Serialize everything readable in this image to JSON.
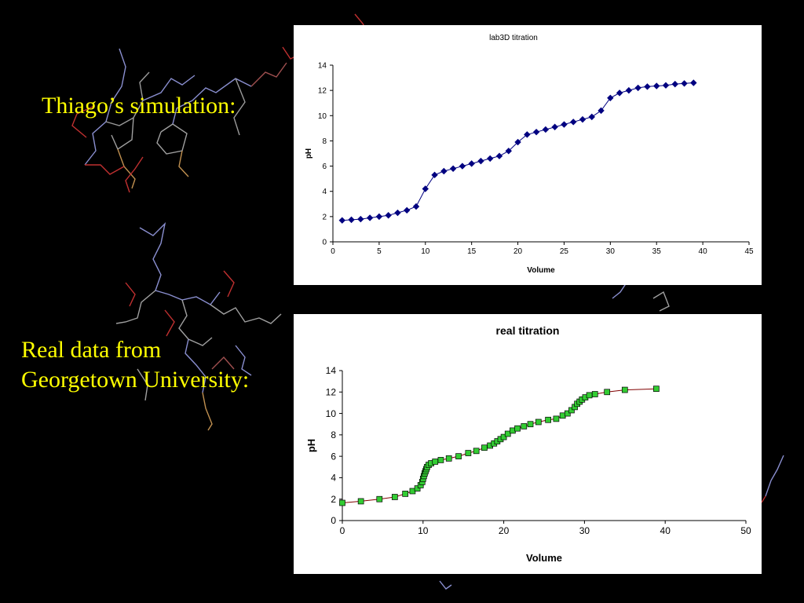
{
  "slide": {
    "simulation_label": "Thiago’s simulation:",
    "real_label_line1": "Real data from",
    "real_label_line2": "Georgetown University:",
    "text_color": "#ffff00",
    "background": "#000000"
  },
  "chart_data": [
    {
      "type": "line",
      "title": "lab3D titration",
      "xlabel": "Volume",
      "ylabel": "pH",
      "xlim": [
        0,
        45
      ],
      "ylim": [
        0,
        14
      ],
      "xticks": [
        0,
        5,
        10,
        15,
        20,
        25,
        30,
        35,
        40,
        45
      ],
      "yticks": [
        0,
        2,
        4,
        6,
        8,
        10,
        12,
        14
      ],
      "grid": false,
      "legend": "none",
      "marker": "diamond",
      "line_color": "#000080",
      "marker_color": "#000080",
      "series": [
        {
          "x": [
            1,
            2,
            3,
            4,
            5,
            6,
            7,
            8,
            9,
            10,
            11,
            12,
            13,
            14,
            15,
            16,
            17,
            18,
            19,
            20,
            21,
            22,
            23,
            24,
            25,
            26,
            27,
            28,
            29,
            30,
            31,
            32,
            33,
            34,
            35,
            36,
            37,
            38,
            39
          ],
          "values": [
            1.7,
            1.75,
            1.8,
            1.9,
            2.0,
            2.1,
            2.3,
            2.5,
            2.8,
            4.2,
            5.3,
            5.6,
            5.8,
            6.0,
            6.2,
            6.4,
            6.6,
            6.8,
            7.2,
            7.9,
            8.5,
            8.7,
            8.9,
            9.1,
            9.3,
            9.5,
            9.7,
            9.9,
            10.4,
            11.4,
            11.8,
            12.0,
            12.2,
            12.3,
            12.35,
            12.4,
            12.5,
            12.55,
            12.6
          ]
        }
      ]
    },
    {
      "type": "line",
      "title": "real titration",
      "xlabel": "Volume",
      "ylabel": "pH",
      "xlim": [
        0,
        50
      ],
      "ylim": [
        0,
        14
      ],
      "xticks": [
        0,
        10,
        20,
        30,
        40,
        50
      ],
      "yticks": [
        0,
        2,
        4,
        6,
        8,
        10,
        12,
        14
      ],
      "grid": false,
      "legend": "none",
      "marker": "square",
      "line_color": "#800000",
      "marker_color": "#33cc33",
      "series": [
        {
          "x": [
            0,
            2.3,
            4.6,
            6.5,
            7.8,
            8.7,
            9.3,
            9.7,
            9.9,
            10.0,
            10.1,
            10.2,
            10.3,
            10.4,
            10.5,
            10.7,
            11.0,
            11.5,
            12.2,
            13.2,
            14.4,
            15.6,
            16.6,
            17.6,
            18.3,
            18.8,
            19.2,
            19.6,
            20.0,
            20.5,
            21.1,
            21.7,
            22.5,
            23.3,
            24.3,
            25.5,
            26.5,
            27.3,
            27.9,
            28.4,
            28.8,
            29.1,
            29.4,
            29.7,
            30.1,
            30.6,
            31.3,
            32.8,
            35.0,
            38.9
          ],
          "values": [
            1.65,
            1.8,
            2.0,
            2.2,
            2.5,
            2.75,
            3.0,
            3.3,
            3.6,
            3.9,
            4.15,
            4.4,
            4.6,
            4.8,
            5.0,
            5.2,
            5.35,
            5.5,
            5.65,
            5.8,
            6.0,
            6.3,
            6.5,
            6.8,
            7.0,
            7.2,
            7.4,
            7.6,
            7.8,
            8.1,
            8.4,
            8.6,
            8.8,
            9.0,
            9.2,
            9.4,
            9.5,
            9.8,
            10.0,
            10.3,
            10.6,
            10.9,
            11.1,
            11.3,
            11.5,
            11.7,
            11.8,
            12.0,
            12.2,
            12.3
          ]
        }
      ]
    }
  ]
}
